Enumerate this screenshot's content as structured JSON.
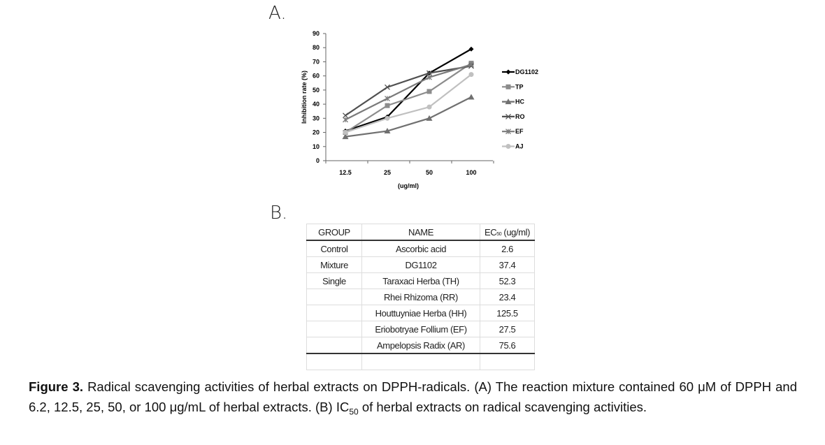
{
  "panel_a_label": "A.",
  "panel_b_label": "B.",
  "chart_data": {
    "type": "line",
    "title": "",
    "xlabel": "(ug/ml)",
    "ylabel": "Inhibition rate (%)",
    "categories": [
      "12.5",
      "25",
      "50",
      "100"
    ],
    "ylim": [
      0,
      90
    ],
    "yticks": [
      0,
      10,
      20,
      30,
      40,
      50,
      60,
      70,
      80,
      90
    ],
    "legend_position": "right",
    "series": [
      {
        "name": "DG1102",
        "values": [
          21,
          31,
          62,
          79
        ],
        "color": "#000000",
        "marker": "diamond"
      },
      {
        "name": "TP",
        "values": [
          20,
          39,
          49,
          69
        ],
        "color": "#8c8c8c",
        "marker": "square"
      },
      {
        "name": "HC",
        "values": [
          17,
          21,
          30,
          45
        ],
        "color": "#707070",
        "marker": "triangle"
      },
      {
        "name": "RO",
        "values": [
          32,
          52,
          62,
          67
        ],
        "color": "#505050",
        "marker": "x"
      },
      {
        "name": "EF",
        "values": [
          29,
          44,
          59,
          68
        ],
        "color": "#7a7a7a",
        "marker": "star"
      },
      {
        "name": "AJ",
        "values": [
          20,
          30,
          38,
          61
        ],
        "color": "#c0c0c0",
        "marker": "circle"
      }
    ]
  },
  "table": {
    "headers": [
      "GROUP",
      "NAME",
      "EC50 (ug/ml)"
    ],
    "header_ec": "EC",
    "header_ec_sub": "50",
    "header_ec_unit": " (ug/ml)",
    "rows": [
      [
        "Control",
        "Ascorbic acid",
        "2.6"
      ],
      [
        "Mixture",
        "DG1102",
        "37.4"
      ],
      [
        "Single",
        "Taraxaci Herba (TH)",
        "52.3"
      ],
      [
        "",
        "Rhei Rhizoma (RR)",
        "23.4"
      ],
      [
        "",
        "Houttuyniae Herba (HH)",
        "125.5"
      ],
      [
        "",
        "Eriobotryae Follium (EF)",
        "27.5"
      ],
      [
        "",
        "Ampelopsis Radix (AR)",
        "75.6"
      ]
    ]
  },
  "caption": {
    "label": "Figure 3.",
    "text1": " Radical scavenging activities of herbal extracts on DPPH-radicals. (A) The reaction mixture contained 60 μM of DPPH and 6.2, 12.5, 25, 50, or 100 μg/mL of herbal extracts. (B) IC",
    "sub": "50",
    "text2": " of herbal extracts on radical scavenging activities."
  }
}
